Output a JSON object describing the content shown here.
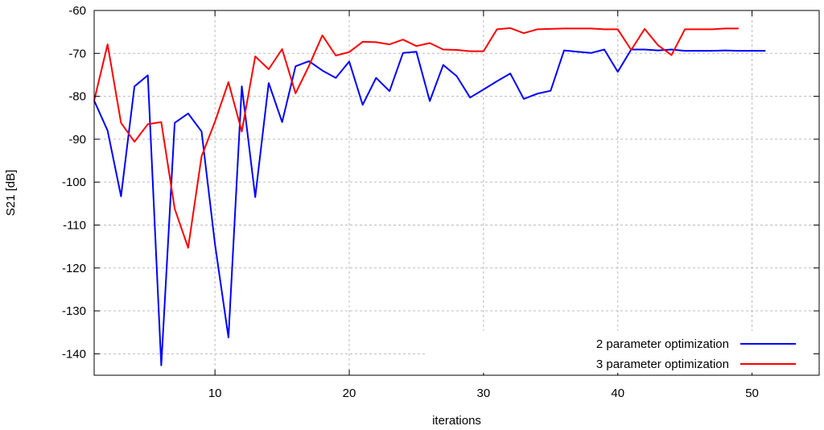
{
  "chart_data": {
    "type": "line",
    "xlabel": "iterations",
    "ylabel": "S21 [dB]",
    "xlim": [
      1,
      55
    ],
    "ylim": [
      -145,
      -60
    ],
    "x_ticks": [
      10,
      20,
      30,
      40,
      50
    ],
    "y_ticks": [
      -60,
      -70,
      -80,
      -90,
      -100,
      -110,
      -120,
      -130,
      -140
    ],
    "x_tick_labels": [
      "10",
      "20",
      "30",
      "40",
      "50"
    ],
    "y_tick_labels": [
      "-60",
      "-70",
      "-80",
      "-90",
      "-100",
      "-110",
      "-120",
      "-130",
      "-140"
    ],
    "grid": true,
    "legend_position": "bottom-right",
    "series": [
      {
        "name": "2 parameter optimization",
        "color": "#0000ff",
        "x": [
          1,
          2,
          3,
          4,
          5,
          6,
          7,
          8,
          9,
          10,
          11,
          12,
          13,
          14,
          15,
          16,
          17,
          18,
          19,
          20,
          21,
          22,
          23,
          24,
          25,
          26,
          27,
          28,
          29,
          30,
          31,
          32,
          33,
          34,
          35,
          36,
          37,
          38,
          39,
          40,
          41,
          42,
          43,
          44,
          45,
          46,
          47,
          48,
          49,
          50,
          51
        ],
        "y": [
          -81,
          -88,
          -103.3,
          -77.7,
          -75.1,
          -142.7,
          -86.2,
          -84,
          -88.2,
          -114.5,
          -136.2,
          -77.7,
          -103.5,
          -76.9,
          -86,
          -73,
          -71.8,
          -74,
          -75.7,
          -71.9,
          -82,
          -75.7,
          -78.8,
          -69.9,
          -69.6,
          -81.1,
          -72.7,
          -75.3,
          -80.3,
          -78.4,
          -76.5,
          -74.7,
          -80.6,
          -79.4,
          -78.7,
          -69.3,
          -69.6,
          -69.9,
          -69.1,
          -74.3,
          -69.1,
          -69.1,
          -69.3,
          -69.1,
          -69.4,
          -69.4,
          -69.4,
          -69.3,
          -69.4,
          -69.4,
          -69.4
        ]
      },
      {
        "name": "3 parameter optimization",
        "color": "#ff0000",
        "x": [
          1,
          2,
          3,
          4,
          5,
          6,
          7,
          8,
          9,
          10,
          11,
          12,
          13,
          14,
          15,
          16,
          17,
          18,
          19,
          20,
          21,
          22,
          23,
          24,
          25,
          26,
          27,
          28,
          29,
          30,
          31,
          32,
          33,
          34,
          35,
          36,
          37,
          38,
          39,
          40,
          41,
          42,
          43,
          44,
          45,
          46,
          47,
          48,
          49
        ],
        "y": [
          -81,
          -67.9,
          -86.2,
          -90.6,
          -86.5,
          -86,
          -106.2,
          -115.3,
          -94,
          -85.9,
          -76.7,
          -88.2,
          -70.7,
          -73.7,
          -69,
          -79.3,
          -72.9,
          -65.8,
          -70.5,
          -69.7,
          -67.3,
          -67.4,
          -67.9,
          -66.8,
          -68.3,
          -67.6,
          -69.1,
          -69.2,
          -69.5,
          -69.5,
          -64.4,
          -64.1,
          -65.3,
          -64.4,
          -64.3,
          -64.2,
          -64.2,
          -64.2,
          -64.4,
          -64.4,
          -69.2,
          -64.3,
          -68.1,
          -70.4,
          -64.4,
          -64.4,
          -64.4,
          -64.2,
          -64.2
        ]
      }
    ]
  }
}
